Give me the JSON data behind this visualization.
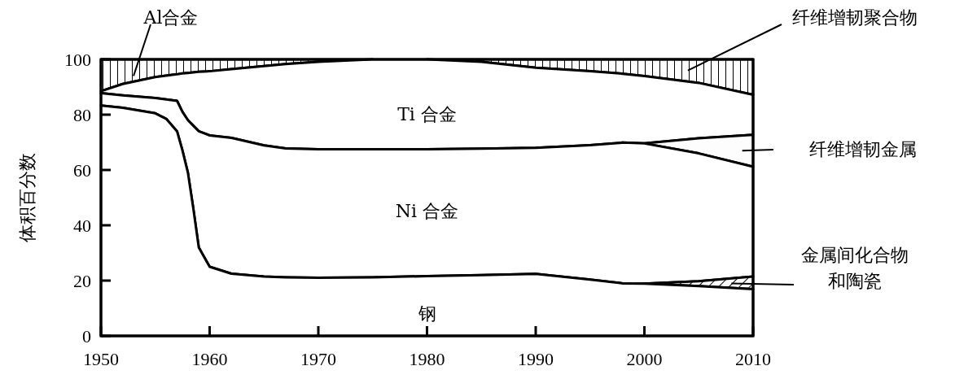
{
  "chart_data": {
    "type": "area",
    "stacked": true,
    "ylabel": "体积百分数",
    "x": [
      1950,
      1952,
      1955,
      1956,
      1957,
      1957.5,
      1958,
      1958.5,
      1959,
      1960,
      1962,
      1965,
      1967,
      1970,
      1975,
      1980,
      1985,
      1990,
      1995,
      1998,
      2000,
      2005,
      2010
    ],
    "xlim": [
      1950,
      2010
    ],
    "xticks": [
      1950,
      1960,
      1970,
      1980,
      1990,
      2000,
      2010
    ],
    "ylim": [
      0,
      100
    ],
    "yticks": [
      0,
      20,
      40,
      60,
      80,
      100
    ],
    "grid": false,
    "series": [
      {
        "name": "钢",
        "color": "#ffffff",
        "values": [
          83.3,
          82.5,
          80.5,
          78.5,
          74,
          67,
          59,
          46,
          32,
          25,
          22.5,
          21.5,
          21.2,
          21,
          21.2,
          21.6,
          22,
          22.4,
          20.4,
          19,
          18.9,
          18,
          16.9
        ]
      },
      {
        "name": "金属间化合物和陶瓷",
        "color": "#000000",
        "values": [
          null,
          null,
          null,
          null,
          null,
          null,
          null,
          null,
          null,
          null,
          null,
          null,
          null,
          null,
          null,
          null,
          null,
          null,
          null,
          null,
          0,
          1.8,
          4.6
        ]
      },
      {
        "name": "Ni 合金",
        "color": "#ffffff",
        "values": [
          4.5,
          4.5,
          5.5,
          7,
          11,
          14,
          19,
          30,
          42,
          47.5,
          49.1,
          47.4,
          46.6,
          46.5,
          46.3,
          45.9,
          45.7,
          45.6,
          48.6,
          50.9,
          50.7,
          46.2,
          39.7
        ]
      },
      {
        "name": "纤维增韧金属",
        "color": "#fdfdfd",
        "values": [
          null,
          null,
          null,
          null,
          null,
          null,
          null,
          null,
          null,
          null,
          null,
          null,
          null,
          null,
          null,
          null,
          null,
          null,
          null,
          null,
          0,
          5.5,
          11.5
        ]
      },
      {
        "name": "Ti 合金",
        "color": "#ffffff",
        "values": [
          0.7,
          4.1,
          7.6,
          8.6,
          9.6,
          13.9,
          17.1,
          19.3,
          21.5,
          23.2,
          24.9,
          28.7,
          30.5,
          31.6,
          32.5,
          32.5,
          31.4,
          29,
          26.7,
          24.9,
          24.4,
          20,
          14.5
        ]
      },
      {
        "name": "纤维增韧聚合物",
        "color": "#000000",
        "values": [
          null,
          null,
          null,
          null,
          null,
          null,
          null,
          null,
          null,
          null,
          null,
          null,
          null,
          null,
          null,
          0,
          0.9,
          3,
          4.3,
          5.2,
          6,
          8.5,
          12.8
        ]
      },
      {
        "name": "Al合金",
        "color": "#000000",
        "values": [
          11.5,
          8.9,
          6.4,
          5.9,
          5.4,
          5.1,
          4.9,
          4.7,
          4.5,
          4.3,
          3.5,
          2.4,
          1.7,
          0.9,
          0,
          null,
          null,
          null,
          null,
          null,
          null,
          null,
          null
        ]
      }
    ]
  }
}
